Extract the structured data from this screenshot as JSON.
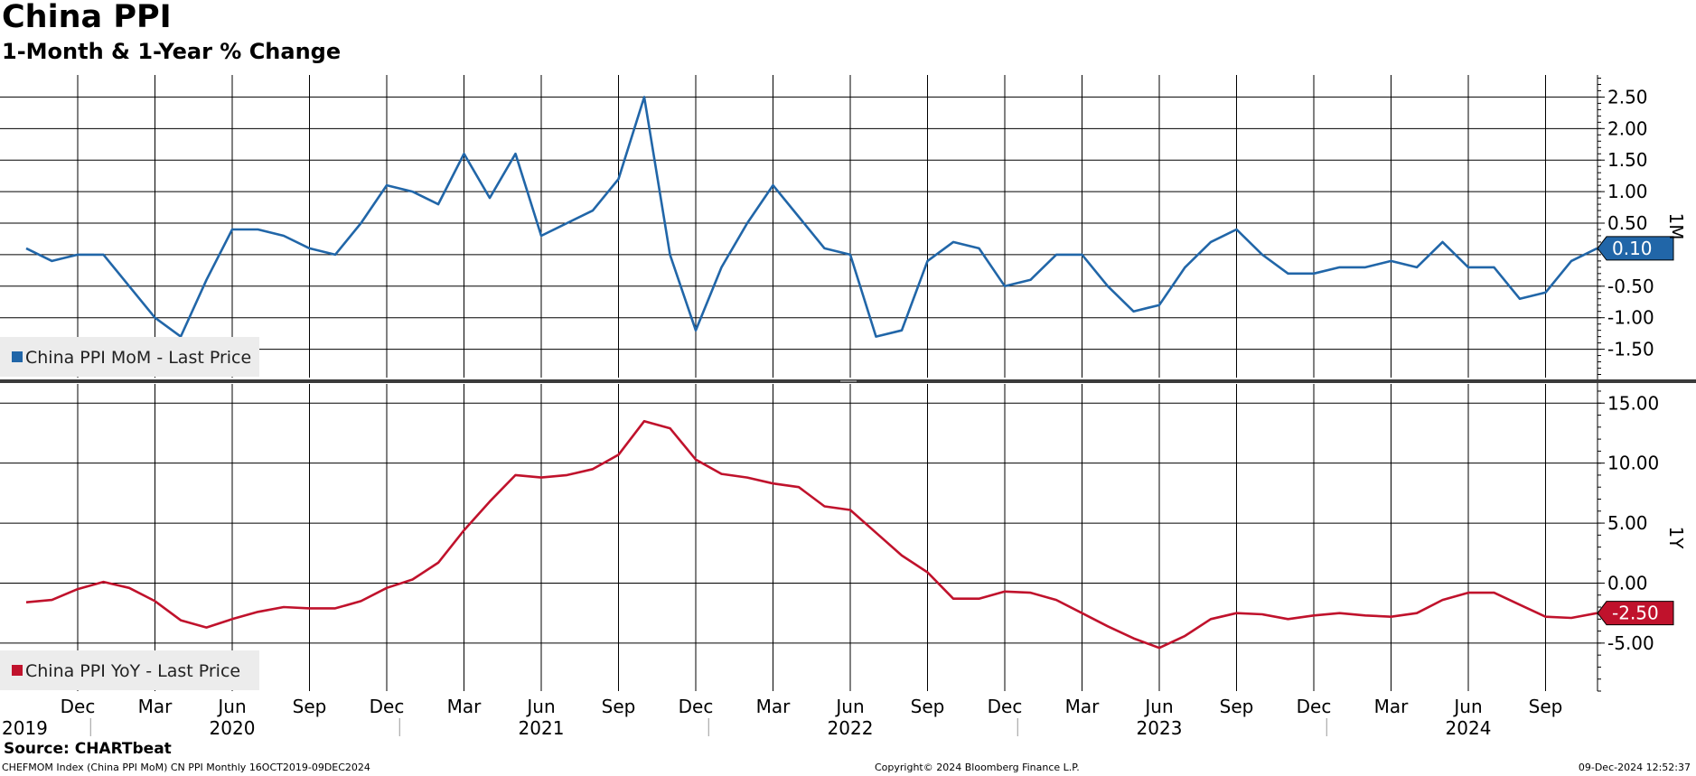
{
  "title": "China PPI",
  "subtitle": "1-Month & 1-Year % Change",
  "footer": {
    "source": "Source: CHARTbeat",
    "index": "CHEFMOM Index (China PPI MoM) CN PPI  Monthly 16OCT2019-09DEC2024",
    "copyright": "Copyright© 2024 Bloomberg Finance L.P.",
    "timestamp": "09-Dec-2024 12:52:37"
  },
  "colors": {
    "mom": "#2166a8",
    "yoy": "#c0122c"
  },
  "chart_data": [
    {
      "type": "line",
      "panel": "1M",
      "series": [
        {
          "name": "China PPI MoM - Last Price",
          "x": [
            "2019-10",
            "2019-11",
            "2019-12",
            "2020-01",
            "2020-02",
            "2020-03",
            "2020-04",
            "2020-05",
            "2020-06",
            "2020-07",
            "2020-08",
            "2020-09",
            "2020-10",
            "2020-11",
            "2020-12",
            "2021-01",
            "2021-02",
            "2021-03",
            "2021-04",
            "2021-05",
            "2021-06",
            "2021-07",
            "2021-08",
            "2021-09",
            "2021-10",
            "2021-11",
            "2021-12",
            "2022-01",
            "2022-02",
            "2022-03",
            "2022-04",
            "2022-05",
            "2022-06",
            "2022-07",
            "2022-08",
            "2022-09",
            "2022-10",
            "2022-11",
            "2022-12",
            "2023-01",
            "2023-02",
            "2023-03",
            "2023-04",
            "2023-05",
            "2023-06",
            "2023-07",
            "2023-08",
            "2023-09",
            "2023-10",
            "2023-11",
            "2023-12",
            "2024-01",
            "2024-02",
            "2024-03",
            "2024-04",
            "2024-05",
            "2024-06",
            "2024-07",
            "2024-08",
            "2024-09",
            "2024-10",
            "2024-11"
          ],
          "values": [
            0.1,
            -0.1,
            0.0,
            0.0,
            -0.5,
            -1.0,
            -1.3,
            -0.4,
            0.4,
            0.4,
            0.3,
            0.1,
            0.0,
            0.5,
            1.1,
            1.0,
            0.8,
            1.6,
            0.9,
            1.6,
            0.3,
            0.5,
            0.7,
            1.2,
            2.5,
            0.0,
            -1.2,
            -0.2,
            0.5,
            1.1,
            0.6,
            0.1,
            0.0,
            -1.3,
            -1.2,
            -0.1,
            0.2,
            0.1,
            -0.5,
            -0.4,
            0.0,
            0.0,
            -0.5,
            -0.9,
            -0.8,
            -0.2,
            0.2,
            0.4,
            0.0,
            -0.3,
            -0.3,
            -0.2,
            -0.2,
            -0.1,
            -0.2,
            0.2,
            -0.2,
            -0.2,
            -0.7,
            -0.6,
            -0.1,
            0.1
          ]
        }
      ],
      "last_value_label": "0.10",
      "yticks": [
        "2.50",
        "2.00",
        "1.50",
        "1.00",
        "0.50",
        "-0.50",
        "-1.00",
        "-1.50"
      ],
      "ylim": [
        -1.95,
        2.85
      ],
      "ylabel": "1M",
      "grid": true,
      "legend": "bottom-left"
    },
    {
      "type": "line",
      "panel": "1Y",
      "series": [
        {
          "name": "China PPI YoY - Last Price",
          "x": [
            "2019-10",
            "2019-11",
            "2019-12",
            "2020-01",
            "2020-02",
            "2020-03",
            "2020-04",
            "2020-05",
            "2020-06",
            "2020-07",
            "2020-08",
            "2020-09",
            "2020-10",
            "2020-11",
            "2020-12",
            "2021-01",
            "2021-02",
            "2021-03",
            "2021-04",
            "2021-05",
            "2021-06",
            "2021-07",
            "2021-08",
            "2021-09",
            "2021-10",
            "2021-11",
            "2021-12",
            "2022-01",
            "2022-02",
            "2022-03",
            "2022-04",
            "2022-05",
            "2022-06",
            "2022-07",
            "2022-08",
            "2022-09",
            "2022-10",
            "2022-11",
            "2022-12",
            "2023-01",
            "2023-02",
            "2023-03",
            "2023-04",
            "2023-05",
            "2023-06",
            "2023-07",
            "2023-08",
            "2023-09",
            "2023-10",
            "2023-11",
            "2023-12",
            "2024-01",
            "2024-02",
            "2024-03",
            "2024-04",
            "2024-05",
            "2024-06",
            "2024-07",
            "2024-08",
            "2024-09",
            "2024-10",
            "2024-11"
          ],
          "values": [
            -1.6,
            -1.4,
            -0.5,
            0.1,
            -0.4,
            -1.5,
            -3.1,
            -3.7,
            -3.0,
            -2.4,
            -2.0,
            -2.1,
            -2.1,
            -1.5,
            -0.4,
            0.3,
            1.7,
            4.4,
            6.8,
            9.0,
            8.8,
            9.0,
            9.5,
            10.7,
            13.5,
            12.9,
            10.3,
            9.1,
            8.8,
            8.3,
            8.0,
            6.4,
            6.1,
            4.2,
            2.3,
            0.9,
            -1.3,
            -1.3,
            -0.7,
            -0.8,
            -1.4,
            -2.5,
            -3.6,
            -4.6,
            -5.4,
            -4.4,
            -3.0,
            -2.5,
            -2.6,
            -3.0,
            -2.7,
            -2.5,
            -2.7,
            -2.8,
            -2.5,
            -1.4,
            -0.8,
            -0.8,
            -1.8,
            -2.8,
            -2.9,
            -2.5
          ]
        }
      ],
      "last_value_label": "-2.50",
      "yticks": [
        "15.00",
        "10.00",
        "5.00",
        "0.00",
        "-5.00"
      ],
      "ylim": [
        -9.0,
        16.6
      ],
      "ylabel": "1Y",
      "grid": true,
      "legend": "bottom-left"
    }
  ],
  "xaxis": {
    "months": [
      {
        "label": "Dec",
        "date": "2019-12"
      },
      {
        "label": "Mar",
        "date": "2020-03"
      },
      {
        "label": "Jun",
        "date": "2020-06"
      },
      {
        "label": "Sep",
        "date": "2020-09"
      },
      {
        "label": "Dec",
        "date": "2020-12"
      },
      {
        "label": "Mar",
        "date": "2021-03"
      },
      {
        "label": "Jun",
        "date": "2021-06"
      },
      {
        "label": "Sep",
        "date": "2021-09"
      },
      {
        "label": "Dec",
        "date": "2021-12"
      },
      {
        "label": "Mar",
        "date": "2022-03"
      },
      {
        "label": "Jun",
        "date": "2022-06"
      },
      {
        "label": "Sep",
        "date": "2022-09"
      },
      {
        "label": "Dec",
        "date": "2022-12"
      },
      {
        "label": "Mar",
        "date": "2023-03"
      },
      {
        "label": "Jun",
        "date": "2023-06"
      },
      {
        "label": "Sep",
        "date": "2023-09"
      },
      {
        "label": "Dec",
        "date": "2023-12"
      },
      {
        "label": "Mar",
        "date": "2024-03"
      },
      {
        "label": "Jun",
        "date": "2024-06"
      },
      {
        "label": "Sep",
        "date": "2024-09"
      }
    ],
    "years": [
      {
        "label": "2019",
        "date": "2019-10"
      },
      {
        "label": "2020",
        "date": "2020-06"
      },
      {
        "label": "2021",
        "date": "2021-06"
      },
      {
        "label": "2022",
        "date": "2022-06"
      },
      {
        "label": "2023",
        "date": "2023-06"
      },
      {
        "label": "2024",
        "date": "2024-06"
      }
    ],
    "year_separators": [
      "2020-01",
      "2021-01",
      "2022-01",
      "2023-01",
      "2024-01"
    ]
  }
}
